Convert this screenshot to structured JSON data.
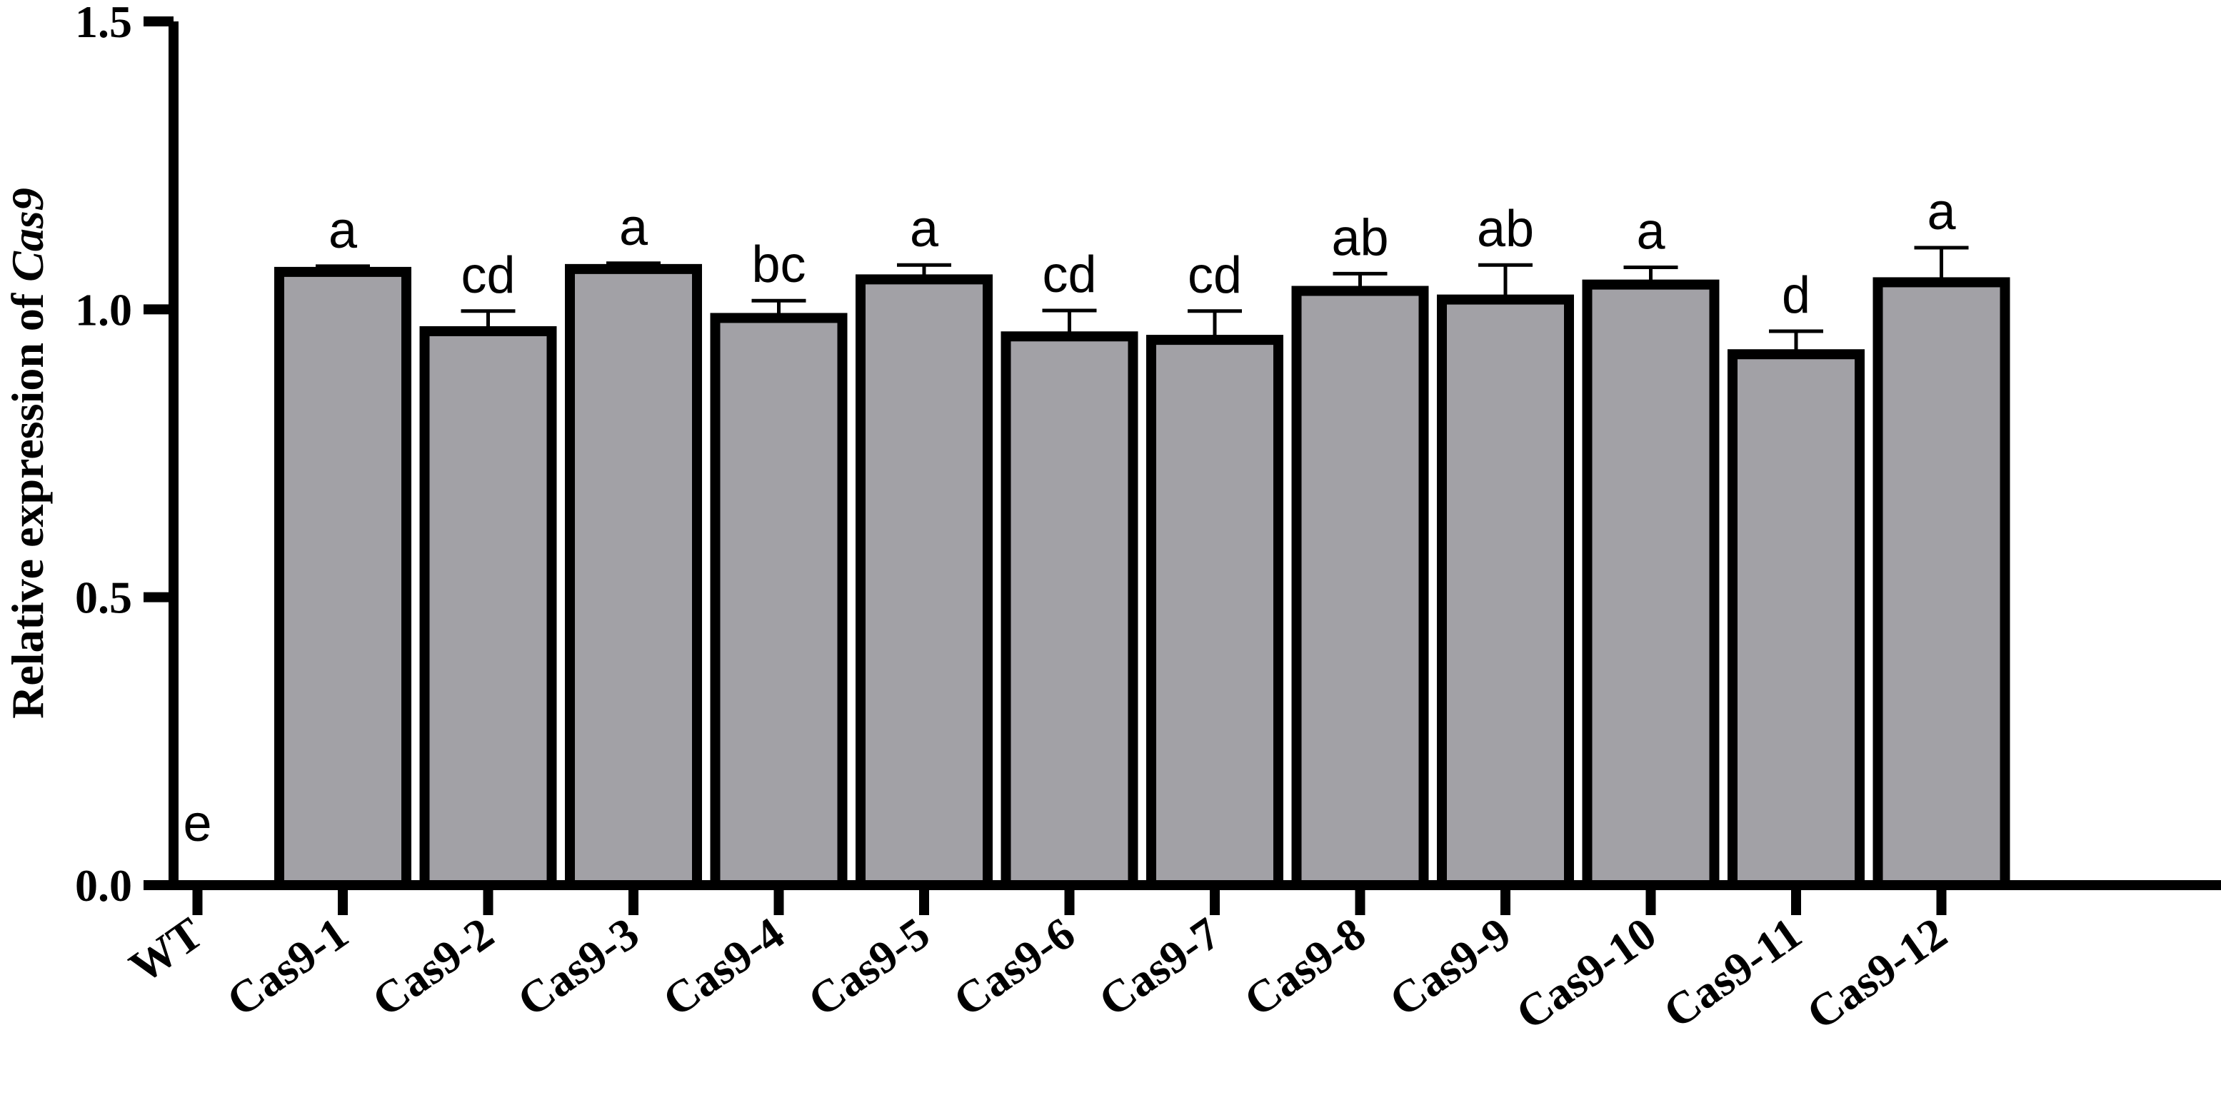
{
  "chart_data": {
    "type": "bar",
    "categories": [
      "WT",
      "Cas9-1",
      "Cas9-2",
      "Cas9-3",
      "Cas9-4",
      "Cas9-5",
      "Cas9-6",
      "Cas9-7",
      "Cas9-8",
      "Cas9-9",
      "Cas9-10",
      "Cas9-11",
      "Cas9-12"
    ],
    "values": [
      0.0,
      1.065,
      0.962,
      1.07,
      0.985,
      1.052,
      0.953,
      0.947,
      1.032,
      1.017,
      1.043,
      0.922,
      1.047
    ],
    "errors": [
      0.0,
      0.01,
      0.035,
      0.01,
      0.03,
      0.025,
      0.045,
      0.05,
      0.03,
      0.06,
      0.03,
      0.04,
      0.06
    ],
    "significance": [
      "e",
      "a",
      "cd",
      "a",
      "bc",
      "a",
      "cd",
      "cd",
      "ab",
      "ab",
      "a",
      "d",
      "a"
    ],
    "ylabel_prefix": "Relative expression of ",
    "ylabel_gene": "Cas9",
    "yticks": [
      "0.0",
      "0.5",
      "1.0",
      "1.5"
    ],
    "ylim": [
      0,
      1.5
    ],
    "bar_fill": "#a2a1a6",
    "bar_stroke": "#000000",
    "grid": false,
    "legend": "none"
  }
}
